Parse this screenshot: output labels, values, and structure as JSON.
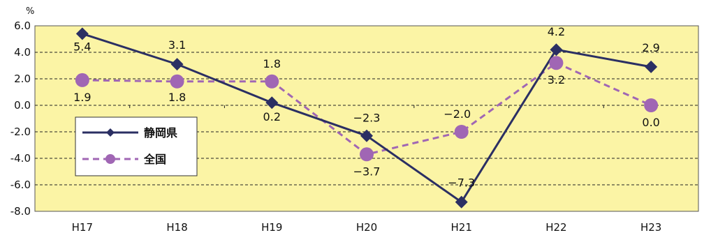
{
  "chart_data": {
    "type": "line",
    "yunit": "%",
    "categories": [
      "H17",
      "H18",
      "H19",
      "H20",
      "H21",
      "H22",
      "H23"
    ],
    "ylim": [
      -8.0,
      6.0
    ],
    "yticks": [
      "6.0",
      "4.0",
      "2.0",
      "0.0",
      "-2.0",
      "-4.0",
      "-6.0",
      "-8.0"
    ],
    "grid": true,
    "legend_position": "left",
    "series": [
      {
        "name": "静岡県",
        "values": [
          5.4,
          3.1,
          0.2,
          -2.3,
          -7.3,
          4.2,
          2.9
        ],
        "labels": [
          "5.4",
          "3.1",
          "0.2",
          "−2.3",
          "−7.3",
          "4.2",
          "2.9"
        ],
        "color": "#2b2f63",
        "marker": "diamond",
        "dash": "solid"
      },
      {
        "name": "全国",
        "values": [
          1.9,
          1.8,
          1.8,
          -3.7,
          -2.0,
          3.2,
          0.0
        ],
        "labels": [
          "1.9",
          "1.8",
          "1.8",
          "−3.7",
          "−2.0",
          "3.2",
          "0.0"
        ],
        "color": "#a066b4",
        "marker": "circle",
        "dash": "dashed"
      }
    ]
  }
}
